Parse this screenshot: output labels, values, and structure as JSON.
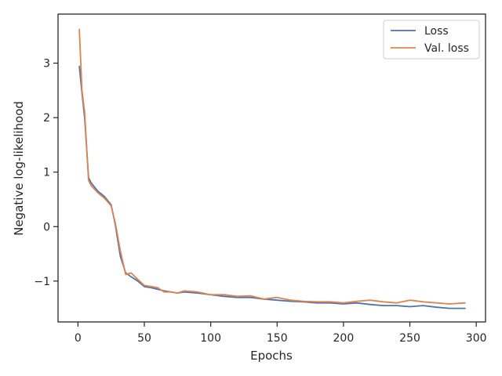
{
  "chart_data": {
    "type": "line",
    "xlabel": "Epochs",
    "ylabel": "Negative log-likelihood",
    "xlim": [
      -15,
      307
    ],
    "ylim": [
      -1.75,
      3.9
    ],
    "xticks": [
      0,
      50,
      100,
      150,
      200,
      250,
      300
    ],
    "yticks": [
      -1,
      0,
      1,
      2,
      3
    ],
    "ytick_labels": [
      "−1",
      "0",
      "1",
      "2",
      "3"
    ],
    "grid": false,
    "legend": {
      "placement": "top-right"
    },
    "x": [
      1,
      3,
      5,
      8,
      10,
      15,
      20,
      25,
      28,
      32,
      36,
      40,
      45,
      50,
      55,
      60,
      65,
      70,
      75,
      80,
      90,
      100,
      110,
      120,
      130,
      140,
      150,
      160,
      170,
      180,
      190,
      200,
      210,
      220,
      230,
      240,
      250,
      260,
      270,
      280,
      292
    ],
    "series": [
      {
        "name": "Loss",
        "color": "#4c72b0",
        "values": [
          2.95,
          2.45,
          2.0,
          0.9,
          0.8,
          0.65,
          0.55,
          0.4,
          0.05,
          -0.55,
          -0.85,
          -0.92,
          -1.0,
          -1.1,
          -1.12,
          -1.15,
          -1.18,
          -1.2,
          -1.22,
          -1.2,
          -1.22,
          -1.25,
          -1.28,
          -1.3,
          -1.3,
          -1.33,
          -1.35,
          -1.37,
          -1.38,
          -1.4,
          -1.4,
          -1.42,
          -1.4,
          -1.43,
          -1.45,
          -1.45,
          -1.47,
          -1.45,
          -1.48,
          -1.5,
          -1.5
        ]
      },
      {
        "name": "Val. loss",
        "color": "#dd8452",
        "values": [
          3.63,
          2.5,
          2.1,
          0.85,
          0.75,
          0.62,
          0.52,
          0.38,
          0.08,
          -0.45,
          -0.88,
          -0.85,
          -0.97,
          -1.08,
          -1.1,
          -1.12,
          -1.2,
          -1.2,
          -1.22,
          -1.18,
          -1.2,
          -1.25,
          -1.25,
          -1.28,
          -1.27,
          -1.33,
          -1.3,
          -1.35,
          -1.37,
          -1.38,
          -1.38,
          -1.4,
          -1.37,
          -1.35,
          -1.38,
          -1.4,
          -1.35,
          -1.38,
          -1.4,
          -1.42,
          -1.4
        ]
      }
    ]
  }
}
